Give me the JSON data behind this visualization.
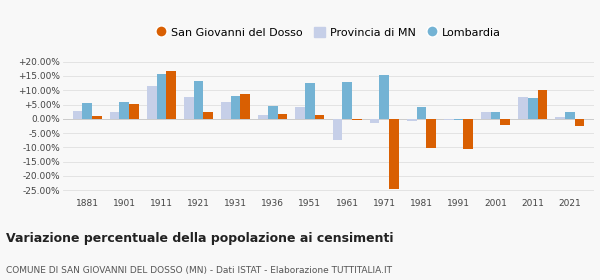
{
  "years": [
    1881,
    1901,
    1911,
    1921,
    1931,
    1936,
    1951,
    1961,
    1971,
    1981,
    1991,
    2001,
    2011,
    2021
  ],
  "san_giovanni": [
    1.0,
    5.3,
    16.8,
    2.5,
    8.8,
    1.8,
    1.2,
    -0.5,
    -24.5,
    -10.2,
    -10.5,
    -2.0,
    10.0,
    -2.5
  ],
  "provincia_mn": [
    2.8,
    2.5,
    11.5,
    7.8,
    5.8,
    1.5,
    4.0,
    -7.5,
    -1.5,
    -0.8,
    -0.5,
    2.5,
    7.5,
    0.5
  ],
  "lombardia": [
    5.5,
    5.8,
    15.8,
    13.2,
    8.0,
    4.5,
    12.5,
    12.8,
    15.5,
    4.0,
    -0.5,
    2.5,
    7.2,
    2.5
  ],
  "color_san_giovanni": "#d95f02",
  "color_provincia": "#c6cfe8",
  "color_lombardia": "#74b3d4",
  "yticks": [
    -25,
    -20,
    -15,
    -10,
    -5,
    0,
    5,
    10,
    15,
    20
  ],
  "ytick_labels": [
    "-25.00%",
    "-20.00%",
    "-15.00%",
    "-10.00%",
    "-5.00%",
    "0.00%",
    "+5.00%",
    "+10.00%",
    "+15.00%",
    "+20.00%"
  ],
  "title": "Variazione percentuale della popolazione ai censimenti",
  "subtitle": "COMUNE DI SAN GIOVANNI DEL DOSSO (MN) - Dati ISTAT - Elaborazione TUTTITALIA.IT",
  "legend_labels": [
    "San Giovanni del Dosso",
    "Provincia di MN",
    "Lombardia"
  ],
  "ylim": [
    -27,
    22
  ],
  "background_color": "#f8f8f8"
}
